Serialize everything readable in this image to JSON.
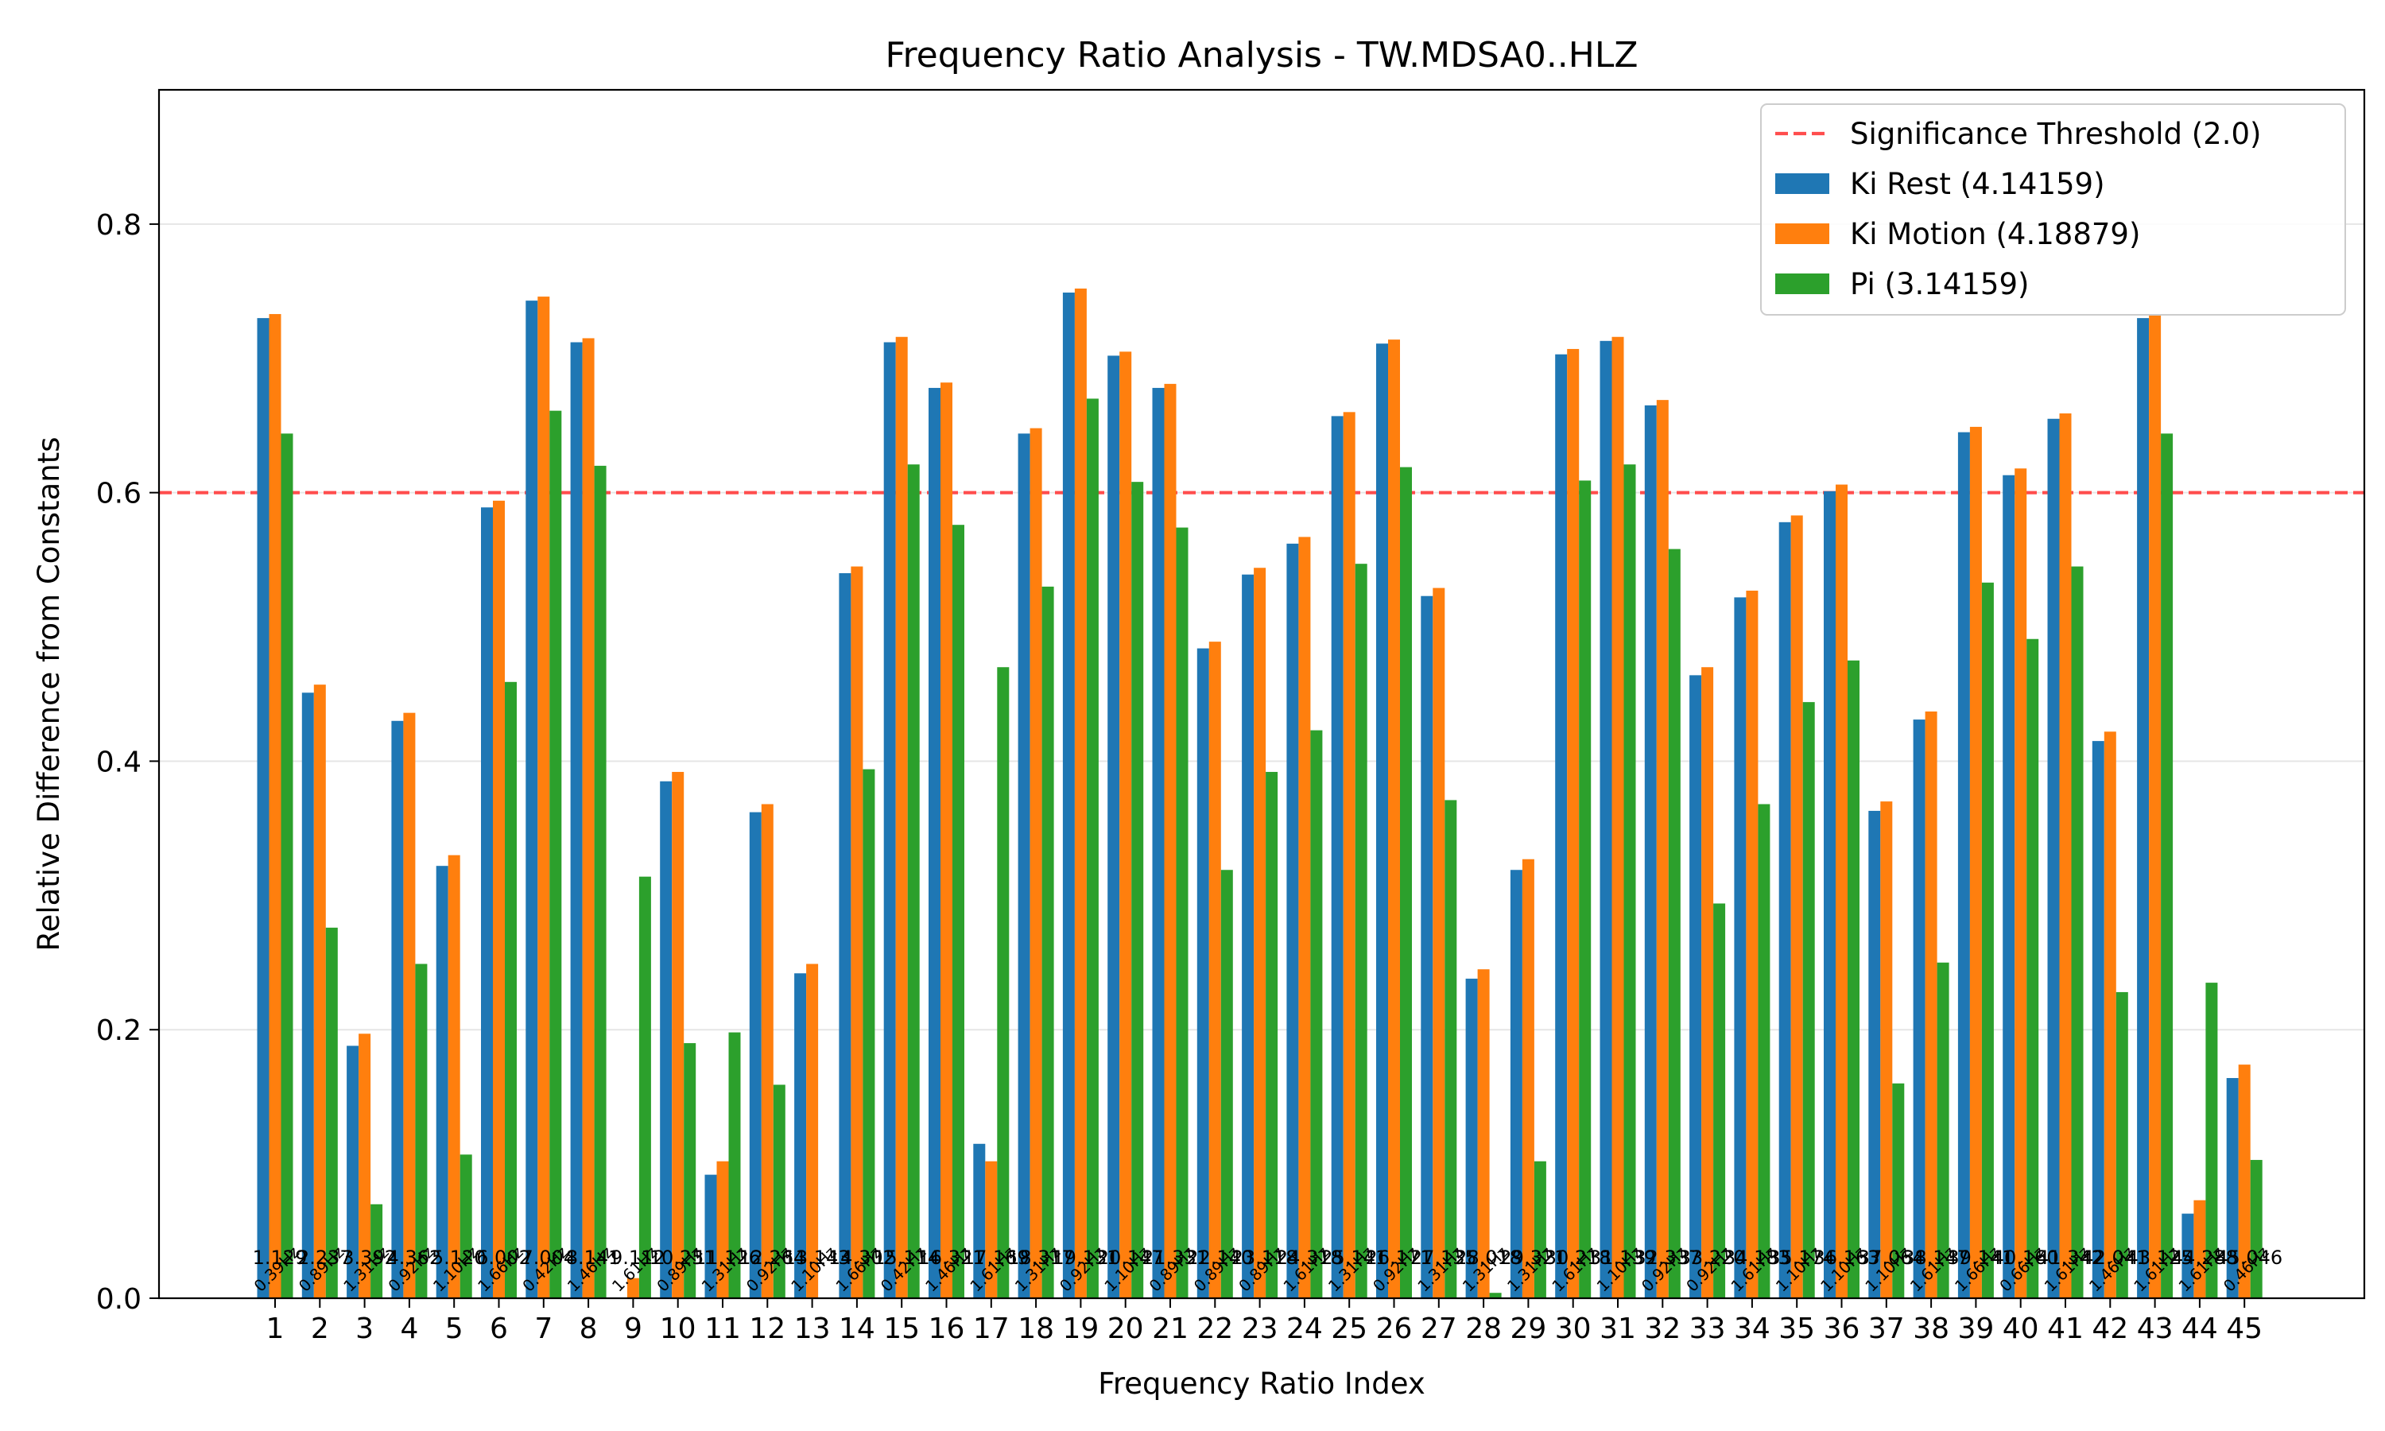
{
  "chart_data": {
    "type": "bar",
    "title": "Frequency Ratio Analysis - TW.MDSA0..HLZ",
    "xlabel": "Frequency Ratio Index",
    "ylabel": "Relative Difference from Constants",
    "ylim": [
      0,
      0.9
    ],
    "yticks": [
      "0.0",
      "0.2",
      "0.4",
      "0.6",
      "0.8"
    ],
    "grid": true,
    "legend_position": "top-right",
    "categories": [
      "1",
      "2",
      "3",
      "4",
      "5",
      "6",
      "7",
      "8",
      "9",
      "10",
      "11",
      "12",
      "13",
      "14",
      "15",
      "16",
      "17",
      "18",
      "19",
      "20",
      "21",
      "22",
      "23",
      "24",
      "25",
      "26",
      "27",
      "28",
      "29",
      "30",
      "31",
      "32",
      "33",
      "34",
      "35",
      "36",
      "37",
      "38",
      "39",
      "40",
      "41",
      "42",
      "43",
      "44",
      "45"
    ],
    "series": [
      {
        "name": "Ki Rest (4.14159)",
        "color": "#1f77b4",
        "values": [
          0.73,
          0.451,
          0.188,
          0.43,
          0.322,
          0.589,
          0.743,
          0.712,
          0.0,
          0.385,
          0.092,
          0.362,
          0.242,
          0.54,
          0.712,
          0.678,
          0.115,
          0.644,
          0.749,
          0.702,
          0.678,
          0.484,
          0.539,
          0.562,
          0.657,
          0.711,
          0.523,
          0.238,
          0.319,
          0.703,
          0.713,
          0.665,
          0.464,
          0.522,
          0.578,
          0.601,
          0.363,
          0.431,
          0.645,
          0.613,
          0.655,
          0.415,
          0.73,
          0.063,
          0.164
        ]
      },
      {
        "name": "Ki Motion (4.18879)",
        "color": "#ff7f0e",
        "values": [
          0.733,
          0.457,
          0.197,
          0.436,
          0.33,
          0.594,
          0.746,
          0.715,
          0.015,
          0.392,
          0.102,
          0.368,
          0.249,
          0.545,
          0.716,
          0.682,
          0.102,
          0.648,
          0.752,
          0.705,
          0.681,
          0.489,
          0.544,
          0.567,
          0.66,
          0.714,
          0.529,
          0.245,
          0.327,
          0.707,
          0.716,
          0.669,
          0.47,
          0.527,
          0.583,
          0.606,
          0.37,
          0.437,
          0.649,
          0.618,
          0.659,
          0.422,
          0.733,
          0.073,
          0.174
        ]
      },
      {
        "name": "Pi (3.14159)",
        "color": "#2ca02c",
        "values": [
          0.644,
          0.276,
          0.07,
          0.249,
          0.107,
          0.459,
          0.661,
          0.62,
          0.314,
          0.19,
          0.198,
          0.159,
          0.0,
          0.394,
          0.621,
          0.576,
          0.47,
          0.53,
          0.67,
          0.608,
          0.574,
          0.319,
          0.392,
          0.423,
          0.547,
          0.619,
          0.371,
          0.004,
          0.102,
          0.609,
          0.621,
          0.558,
          0.294,
          0.368,
          0.444,
          0.475,
          0.16,
          0.25,
          0.533,
          0.491,
          0.545,
          0.228,
          0.644,
          0.235,
          0.103
        ]
      }
    ],
    "threshold": {
      "name": "Significance Threshold (2.0)",
      "value": 0.6,
      "color": "#ff4d4d"
    },
    "bar_annotations": [
      "1.129",
      "2.237",
      "3.392",
      "4.362",
      "5.120",
      "6.002",
      "7.004",
      "8.141",
      "9.112",
      "10.251",
      "11.126",
      "12.264",
      "13.143",
      "14.302",
      "15.114",
      "16.321",
      "17.169",
      "18.317",
      "19.131",
      "20.147",
      "21.331",
      "22.140",
      "23.118",
      "24.318",
      "25.141",
      "26.171",
      "27.135",
      "28.018",
      "29.321",
      "30.218",
      "31.139",
      "32.337",
      "33.220",
      "34.183",
      "35.174",
      "36.163",
      "37.064",
      "38.147",
      "39.141",
      "40.160",
      "41.342",
      "42.041",
      "43.125",
      "44.288",
      "45.046"
    ],
    "freq_annotations": [
      "0.39Hz",
      "0.89Hz",
      "1.31Hz",
      "0.92Hz",
      "1.10Hz",
      "1.66Hz",
      "0.42Hz",
      "1.46Hz",
      "1.61Hz",
      "0.89Hz",
      "1.31Hz",
      "0.92Hz",
      "1.10Hz",
      "1.66Hz",
      "0.42Hz",
      "1.46Hz",
      "1.61Hz",
      "1.31Hz",
      "0.92Hz",
      "1.10Hz",
      "0.89Hz",
      "0.89Hz",
      "0.89Hz",
      "1.61Hz",
      "1.31Hz",
      "0.92Hz",
      "1.31Hz",
      "1.31Hz",
      "1.31Hz",
      "1.61Hz",
      "1.10Hz",
      "0.92Hz",
      "0.92Hz",
      "1.61Hz",
      "1.10Hz",
      "1.10Hz",
      "1.10Hz",
      "1.61Hz",
      "1.66Hz",
      "0.66Hz",
      "1.61Hz",
      "1.46Hz",
      "1.61Hz",
      "1.61Hz",
      "0.46Hz"
    ]
  }
}
